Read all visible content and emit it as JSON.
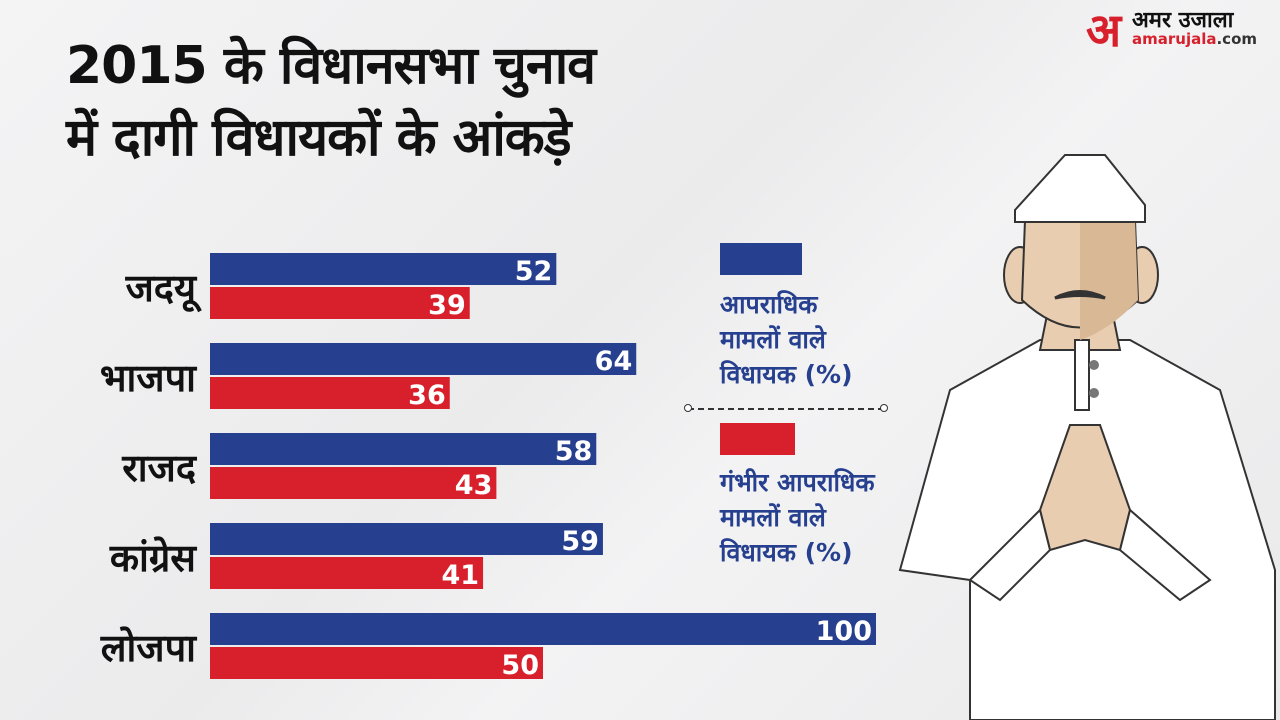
{
  "title_lines": [
    "2015 के विधानसभा चुनाव",
    "में दागी विधायकों के आंकड़े"
  ],
  "logo": {
    "mark": "अ",
    "hindi": "अमर उजाला",
    "site_main": "amarujala",
    "site_tld": ".com"
  },
  "colors": {
    "series1": "#26408f",
    "series2": "#d8202c"
  },
  "chart_data": {
    "type": "bar",
    "orientation": "horizontal",
    "title": "2015 के विधानसभा चुनाव में दागी विधायकों के आंकड़े",
    "categories": [
      "जदयू",
      "भाजपा",
      "राजद",
      "कांग्रेस",
      "लोजपा"
    ],
    "series": [
      {
        "name": "आपराधिक मामलों वाले विधायक (%)",
        "values": [
          52,
          64,
          58,
          59,
          100
        ]
      },
      {
        "name": "गंभीर आपराधिक मामलों वाले विधायक (%)",
        "values": [
          39,
          36,
          43,
          41,
          50
        ]
      }
    ],
    "xlim": [
      0,
      100
    ],
    "grid": false,
    "legend_position": "right"
  },
  "legend": [
    {
      "lines": [
        "आपराधिक",
        "मामलों वाले",
        "विधायक (%)"
      ]
    },
    {
      "lines": [
        "गंभीर आपराधिक",
        "मामलों वाले",
        "विधायक (%)"
      ]
    }
  ]
}
